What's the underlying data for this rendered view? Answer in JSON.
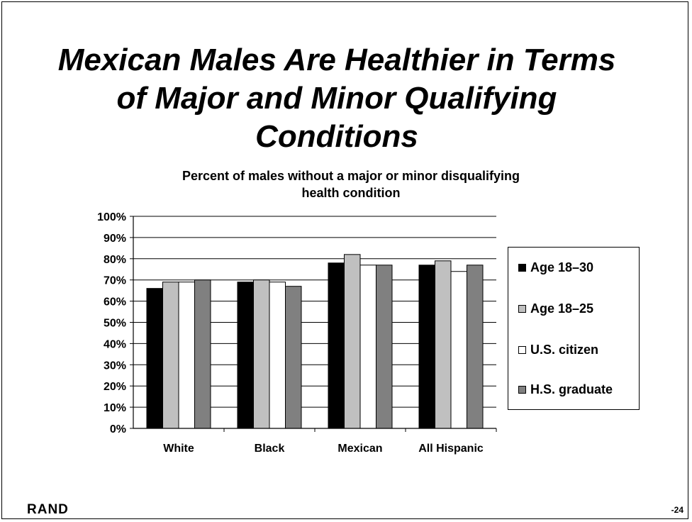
{
  "slide": {
    "title": "Mexican Males Are Healthier in Terms\nof Major and Minor Qualifying\nConditions",
    "logo": "RAND",
    "page_number": "-24"
  },
  "chart_data": {
    "type": "bar",
    "title": "Percent of males without a major or minor disqualifying\nhealth condition",
    "categories": [
      "White",
      "Black",
      "Mexican",
      "All Hispanic"
    ],
    "series": [
      {
        "name": "Age 18–30",
        "values": [
          66,
          69,
          78,
          77
        ],
        "color": "#000000"
      },
      {
        "name": "Age 18–25",
        "values": [
          69,
          70,
          82,
          79
        ],
        "color": "#c0c0c0"
      },
      {
        "name": "U.S. citizen",
        "values": [
          69,
          69,
          77,
          74
        ],
        "color": "#ffffff"
      },
      {
        "name": "H.S. graduate",
        "values": [
          70,
          67,
          77,
          77
        ],
        "color": "#808080"
      }
    ],
    "ylim": [
      0,
      100
    ],
    "yticks": [
      "0%",
      "10%",
      "20%",
      "30%",
      "40%",
      "50%",
      "60%",
      "70%",
      "80%",
      "90%",
      "100%"
    ],
    "grid": true,
    "legend_position": "right"
  }
}
